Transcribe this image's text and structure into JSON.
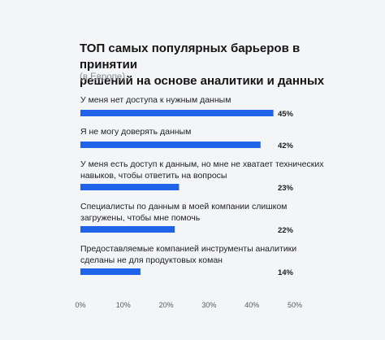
{
  "chart_data": {
    "type": "bar",
    "orientation": "horizontal",
    "title": "ТОП самых популярных барьеров в принятии\nрешений на основе аналитики и данных",
    "subtitle": "(в Европе)",
    "categories": [
      [
        "У меня нет доступа к нужным данным"
      ],
      [
        "Я не могу доверять данным"
      ],
      [
        "У меня есть доступ к данным, но мне не хватает технических",
        "навыков, чтобы ответить на вопросы"
      ],
      [
        "Специалисты по данным в моей компании слишком",
        "загружены, чтобы мне помочь"
      ],
      [
        "Предоставляемые компанией инструменты аналитики",
        "сделаны не для продуктовых коман"
      ]
    ],
    "values": [
      45,
      42,
      23,
      22,
      14
    ],
    "value_labels": [
      "45%",
      "42%",
      "23%",
      "22%",
      "14%"
    ],
    "xlim": [
      0,
      50
    ],
    "xticks": [
      "0%",
      "10%",
      "20%",
      "30%",
      "40%",
      "50%"
    ],
    "grid": false,
    "colors": {
      "bar": "#1f63e8"
    }
  }
}
